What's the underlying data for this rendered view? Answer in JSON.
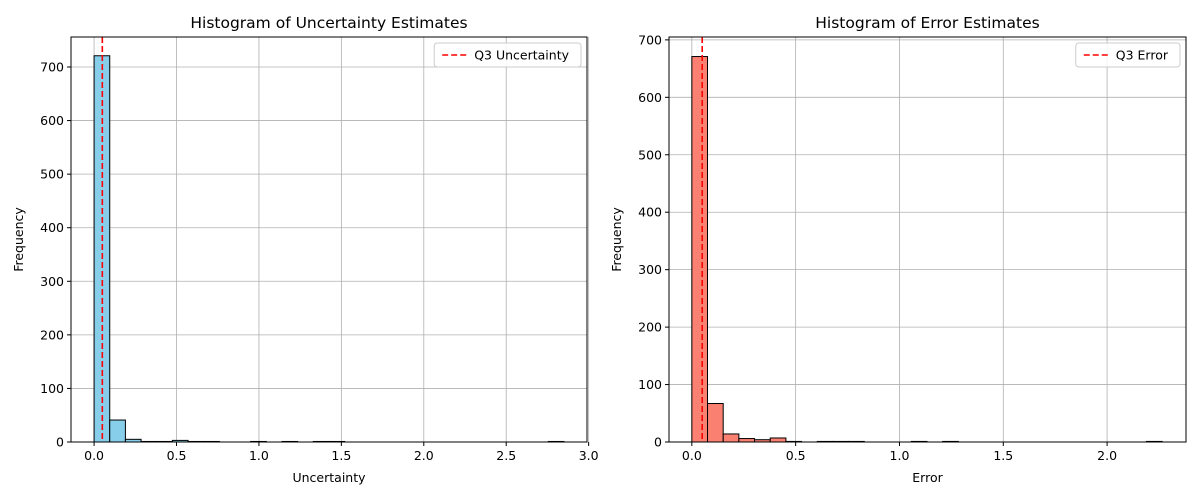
{
  "chart_data": [
    {
      "type": "bar",
      "title": "Histogram of Uncertainty Estimates",
      "xlabel": "Uncertainty",
      "ylabel": "Frequency",
      "xlim": [
        -0.14,
        2.99
      ],
      "ylim": [
        0,
        756
      ],
      "xticks": [
        0.0,
        0.5,
        1.0,
        1.5,
        2.0,
        2.5,
        3.0
      ],
      "xtick_labels": [
        "0.0",
        "0.5",
        "1.0",
        "1.5",
        "2.0",
        "2.5",
        "3.0"
      ],
      "yticks": [
        0,
        100,
        200,
        300,
        400,
        500,
        600,
        700
      ],
      "ytick_labels": [
        "0",
        "100",
        "200",
        "300",
        "400",
        "500",
        "600",
        "700"
      ],
      "bin_start": 0.0,
      "bin_width": 0.095,
      "values": [
        721,
        41,
        5,
        1,
        1,
        3,
        1,
        1,
        0,
        0,
        1,
        0,
        1,
        0,
        1,
        1,
        0,
        0,
        0,
        0,
        0,
        0,
        0,
        0,
        0,
        0,
        0,
        0,
        0,
        1
      ],
      "bar_color": "#87CEEB",
      "edge_color": "#000000",
      "grid": true,
      "legend": {
        "label": "Q3 Uncertainty",
        "position": "upper-right"
      },
      "vline": {
        "x": 0.05,
        "color": "#FF0000",
        "style": "dashed"
      }
    },
    {
      "type": "bar",
      "title": "Histogram of Error Estimates",
      "xlabel": "Error",
      "ylabel": "Frequency",
      "xlim": [
        -0.11,
        2.38
      ],
      "ylim": [
        0,
        705
      ],
      "xticks": [
        0.0,
        0.5,
        1.0,
        1.5,
        2.0
      ],
      "xtick_labels": [
        "0.0",
        "0.5",
        "1.0",
        "1.5",
        "2.0"
      ],
      "yticks": [
        0,
        100,
        200,
        300,
        400,
        500,
        600,
        700
      ],
      "ytick_labels": [
        "0",
        "100",
        "200",
        "300",
        "400",
        "500",
        "600",
        "700"
      ],
      "bin_start": 0.0,
      "bin_width": 0.0755,
      "values": [
        671,
        67,
        14,
        6,
        4,
        7,
        1,
        0,
        1,
        1,
        1,
        0,
        0,
        0,
        1,
        0,
        1,
        0,
        0,
        0,
        0,
        0,
        0,
        0,
        0,
        0,
        0,
        0,
        0,
        1
      ],
      "bar_color": "#FA8072",
      "edge_color": "#000000",
      "grid": true,
      "legend": {
        "label": "Q3 Error",
        "position": "upper-right"
      },
      "vline": {
        "x": 0.05,
        "color": "#FF0000",
        "style": "dashed"
      }
    }
  ]
}
